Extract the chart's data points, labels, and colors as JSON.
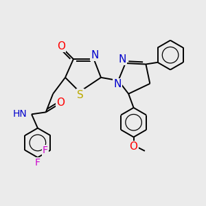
{
  "bg_color": "#ebebeb",
  "colors": {
    "C": "#000000",
    "N": "#0000cc",
    "O": "#ff0000",
    "S": "#bbaa00",
    "F": "#cc00cc",
    "H": "#777777"
  },
  "bond_lw": 1.4,
  "font_size": 10,
  "title": ""
}
